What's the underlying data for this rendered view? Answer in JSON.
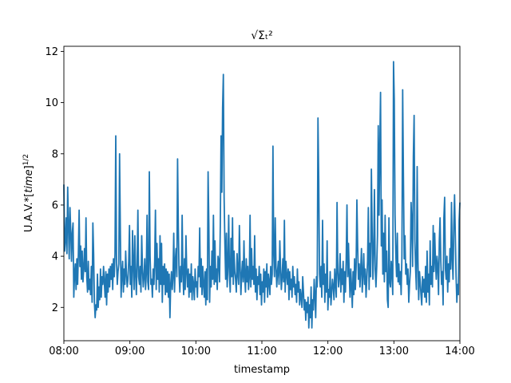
{
  "chart_data": {
    "type": "line",
    "title": "√Σₜ²",
    "xlabel": "timestamp",
    "ylabel": "U.A.V.*[time]^1/2",
    "x_range": [
      "08:00",
      "14:00"
    ],
    "x_ticks": [
      "08:00",
      "09:00",
      "10:00",
      "11:00",
      "12:00",
      "13:00",
      "14:00"
    ],
    "ylim": [
      0.7,
      12.2
    ],
    "y_ticks": [
      2,
      4,
      6,
      8,
      10,
      12
    ],
    "grid": false,
    "legend": "none",
    "color": "#1f77b4",
    "series": [
      {
        "x_start": "08:00",
        "x_step_minutes": 1,
        "values": [
          6.8,
          4.2,
          4.6,
          5.5,
          4.1,
          6.7,
          5.2,
          3.9,
          5.9,
          5.0,
          3.8,
          4.9,
          5.3,
          2.4,
          3.3,
          3.7,
          2.7,
          3.9,
          2.9,
          4.1,
          5.8,
          3.6,
          4.4,
          3.1,
          4.2,
          3.0,
          3.5,
          4.3,
          3.4,
          5.5,
          3.2,
          2.6,
          3.8,
          2.7,
          3.1,
          2.5,
          3.6,
          2.2,
          5.3,
          4.1,
          2.2,
          1.6,
          2.1,
          1.9,
          3.3,
          2.0,
          2.8,
          2.3,
          3.5,
          2.4,
          3.2,
          2.9,
          3.6,
          3.0,
          2.4,
          3.4,
          2.1,
          3.3,
          2.6,
          3.5,
          2.8,
          3.6,
          3.1,
          3.7,
          2.7,
          3.9,
          3.2,
          4.1,
          8.7,
          3.8,
          2.9,
          3.4,
          3.7,
          8.0,
          5.0,
          2.4,
          3.3,
          3.8,
          2.6,
          3.5,
          2.9,
          4.2,
          3.3,
          2.8,
          3.1,
          3.8,
          5.2,
          2.9,
          3.6,
          2.4,
          5.0,
          3.7,
          2.7,
          4.8,
          3.3,
          2.5,
          3.7,
          5.8,
          3.2,
          2.9,
          3.6,
          2.6,
          4.8,
          3.5,
          2.8,
          3.2,
          3.9,
          2.7,
          3.3,
          5.6,
          3.0,
          2.7,
          7.3,
          4.0,
          2.9,
          3.1,
          2.4,
          3.5,
          2.9,
          3.8,
          5.8,
          2.7,
          4.5,
          3.1,
          3.9,
          2.6,
          4.8,
          2.9,
          4.5,
          2.2,
          3.6,
          2.9,
          3.7,
          2.5,
          3.5,
          2.6,
          3.4,
          2.4,
          3.3,
          1.6,
          2.9,
          3.4,
          2.7,
          3.2,
          4.9,
          2.6,
          3.8,
          4.3,
          3.2,
          7.8,
          5.1,
          3.3,
          2.6,
          3.6,
          3.0,
          5.6,
          3.3,
          2.5,
          3.9,
          2.7,
          4.8,
          3.4,
          2.8,
          3.5,
          2.4,
          3.3,
          2.6,
          3.7,
          2.3,
          3.2,
          2.9,
          2.3,
          3.5,
          2.8,
          3.0,
          2.4,
          3.6,
          3.2,
          5.1,
          2.8,
          3.9,
          2.5,
          3.6,
          2.9,
          2.4,
          3.4,
          2.1,
          3.5,
          2.3,
          7.3,
          5.2,
          2.2,
          3.6,
          2.8,
          4.2,
          3.1,
          5.6,
          2.9,
          4.6,
          3.0,
          3.5,
          2.7,
          4.0,
          3.8,
          3.0,
          5.2,
          8.7,
          6.5,
          9.8,
          11.1,
          6.3,
          4.5,
          3.1,
          4.9,
          2.8,
          3.6,
          5.6,
          3.3,
          2.6,
          4.7,
          3.2,
          5.5,
          2.9,
          4.2,
          3.4,
          3.1,
          2.6,
          4.1,
          3.3,
          2.9,
          5.2,
          3.6,
          2.5,
          3.3,
          3.8,
          3.0,
          4.6,
          3.2,
          2.6,
          3.9,
          3.0,
          3.6,
          2.7,
          3.2,
          5.6,
          2.8,
          4.3,
          3.1,
          3.6,
          2.9,
          4.8,
          2.6,
          3.5,
          2.3,
          3.2,
          2.9,
          3.6,
          2.5,
          3.3,
          2.1,
          3.0,
          2.6,
          3.5,
          2.2,
          3.4,
          2.8,
          3.7,
          2.4,
          3.3,
          3.0,
          2.5,
          3.6,
          2.9,
          3.3,
          8.3,
          4.1,
          3.2,
          5.5,
          3.6,
          2.8,
          3.4,
          3.8,
          2.9,
          4.6,
          3.5,
          2.7,
          3.2,
          3.9,
          3.0,
          5.4,
          2.6,
          3.8,
          3.3,
          2.9,
          3.5,
          2.3,
          3.4,
          2.7,
          3.1,
          2.4,
          3.6,
          2.8,
          3.2,
          2.5,
          2.9,
          2.2,
          3.5,
          2.6,
          3.0,
          2.1,
          2.7,
          2.4,
          2.0,
          3.2,
          2.6,
          1.9,
          2.3,
          1.5,
          2.2,
          1.8,
          2.4,
          1.2,
          2.1,
          1.6,
          2.8,
          1.2,
          2.3,
          1.9,
          3.1,
          2.5,
          1.6,
          3.2,
          2.8,
          9.4,
          7.0,
          3.3,
          2.8,
          3.6,
          2.4,
          5.4,
          2.9,
          3.7,
          2.2,
          3.3,
          2.6,
          4.6,
          1.9,
          2.7,
          2.4,
          3.4,
          2.1,
          2.6,
          3.1,
          2.8,
          2.3,
          3.5,
          2.9,
          2.4,
          6.1,
          3.4,
          2.8,
          3.2,
          4.1,
          2.6,
          3.5,
          2.9,
          3.8,
          2.2,
          3.4,
          2.6,
          3.9,
          6.0,
          3.2,
          4.5,
          3.3,
          2.4,
          3.5,
          2.8,
          2.0,
          3.4,
          2.5,
          3.9,
          2.7,
          3.6,
          6.2,
          4.4,
          3.1,
          3.7,
          2.8,
          3.5,
          4.3,
          2.6,
          3.3,
          4.1,
          2.9,
          3.5,
          2.4,
          3.1,
          3.8,
          5.9,
          2.7,
          4.5,
          3.2,
          7.4,
          5.0,
          3.1,
          4.2,
          6.6,
          3.5,
          2.8,
          3.6,
          4.8,
          9.1,
          5.6,
          8.2,
          10.4,
          4.4,
          6.2,
          3.3,
          4.9,
          3.0,
          5.6,
          3.4,
          4.2,
          2.3,
          2.0,
          5.5,
          3.0,
          2.8,
          3.8,
          3.3,
          2.5,
          11.6,
          10.1,
          5.6,
          4.1,
          3.2,
          4.9,
          3.0,
          3.7,
          2.9,
          3.4,
          2.5,
          4.0,
          10.5,
          7.1,
          3.9,
          4.8,
          3.3,
          3.7,
          2.9,
          3.5,
          2.2,
          2.9,
          3.4,
          6.1,
          5.3,
          3.6,
          7.9,
          9.5,
          4.6,
          3.5,
          2.7,
          7.5,
          3.9,
          2.3,
          3.4,
          3.0,
          2.5,
          2.1,
          3.2,
          2.6,
          3.1,
          2.4,
          3.6,
          2.2,
          4.2,
          2.6,
          3.3,
          2.1,
          4.6,
          2.9,
          3.6,
          2.8,
          5.2,
          3.4,
          4.9,
          3.8,
          3.1,
          4.0,
          3.6,
          2.5,
          4.6,
          5.5,
          3.8,
          2.9,
          3.4,
          2.1,
          5.5,
          6.3,
          3.5,
          3.1,
          4.0,
          2.6,
          3.7,
          3.0,
          4.3,
          3.5,
          6.1,
          3.9,
          3.1,
          5.2,
          6.4,
          4.8,
          3.2,
          2.2,
          2.9,
          2.5,
          5.4,
          6.1
        ]
      }
    ]
  }
}
